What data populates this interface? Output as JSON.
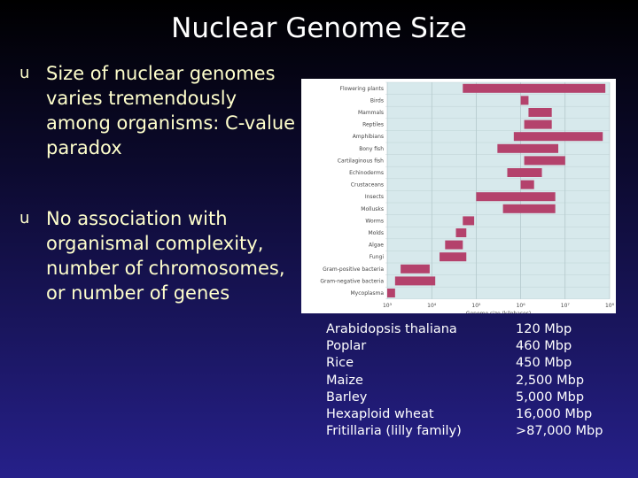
{
  "slide": {
    "title": "Nuclear Genome Size"
  },
  "bullets": [
    {
      "marker": "u",
      "text": "Size of nuclear genomes varies tremendously among organisms: C-value paradox"
    },
    {
      "marker": "u",
      "text": "No association with organismal complexity, number of chromosomes, or number of genes"
    }
  ],
  "colors": {
    "bar": "#b4426c",
    "band": "#d7e9ec",
    "text": "#ffffcc"
  },
  "chart_data": {
    "type": "bar",
    "orientation": "horizontal",
    "scale": "log",
    "xlabel": "Genome size (kilobases)",
    "xlim": [
      1000,
      100000000
    ],
    "x_ticks": [
      "10³",
      "10⁴",
      "10⁵",
      "10⁶",
      "10⁷",
      "10⁸"
    ],
    "categories": [
      "Flowering plants",
      "Birds",
      "Mammals",
      "Reptiles",
      "Amphibians",
      "Bony fish",
      "Cartilaginous fish",
      "Echinoderms",
      "Crustaceans",
      "Insects",
      "Mollusks",
      "Worms",
      "Molds",
      "Algae",
      "Fungi",
      "Gram-positive bacteria",
      "Gram-negative bacteria",
      "Mycoplasma"
    ],
    "ranges": [
      [
        50000,
        80000000
      ],
      [
        1000000,
        1500000
      ],
      [
        1500000,
        5000000
      ],
      [
        1200000,
        5000000
      ],
      [
        700000,
        70000000
      ],
      [
        300000,
        7000000
      ],
      [
        1200000,
        10000000
      ],
      [
        500000,
        3000000
      ],
      [
        1000000,
        2000000
      ],
      [
        100000,
        6000000
      ],
      [
        400000,
        6000000
      ],
      [
        50000,
        90000
      ],
      [
        35000,
        60000
      ],
      [
        20000,
        50000
      ],
      [
        15000,
        60000
      ],
      [
        2000,
        9000
      ],
      [
        1500,
        12000
      ],
      [
        500,
        1500
      ]
    ]
  },
  "genome_table": [
    {
      "species": "Arabidopsis thaliana",
      "size": "120 Mbp"
    },
    {
      "species": "Poplar",
      "size": "460 Mbp"
    },
    {
      "species": "Rice",
      "size": "450 Mbp"
    },
    {
      "species": "Maize",
      "size": "2,500 Mbp"
    },
    {
      "species": "Barley",
      "size": "5,000 Mbp"
    },
    {
      "species": "Hexaploid wheat",
      "size": "16,000 Mbp"
    },
    {
      "species": "Fritillaria (lilly family)",
      "size": ">87,000 Mbp"
    }
  ]
}
